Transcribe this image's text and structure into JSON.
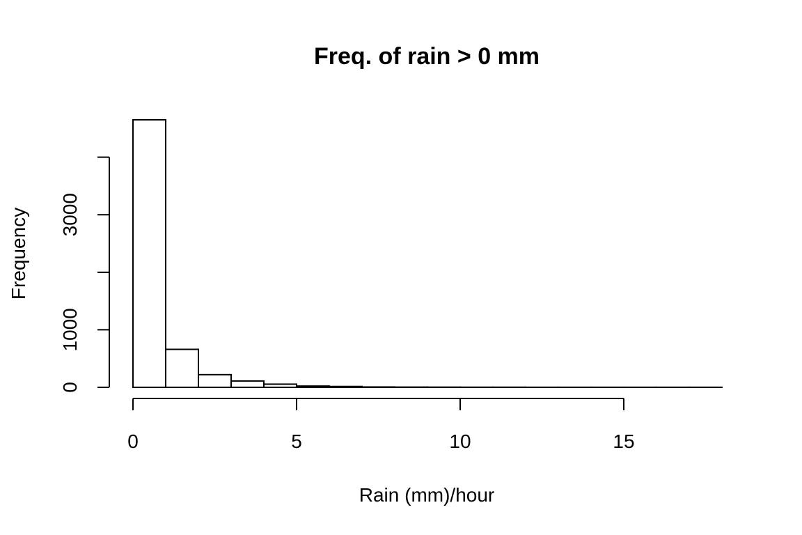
{
  "chart_data": {
    "type": "bar",
    "title": "Freq. of rain > 0 mm",
    "xlabel": "Rain (mm)/hour",
    "ylabel": "Frequency",
    "bin_width": 1,
    "bins": [
      {
        "x0": 0,
        "x1": 1,
        "count": 4650
      },
      {
        "x0": 1,
        "x1": 2,
        "count": 660
      },
      {
        "x0": 2,
        "x1": 3,
        "count": 220
      },
      {
        "x0": 3,
        "x1": 4,
        "count": 110
      },
      {
        "x0": 4,
        "x1": 5,
        "count": 55
      },
      {
        "x0": 5,
        "x1": 6,
        "count": 22
      },
      {
        "x0": 6,
        "x1": 7,
        "count": 15
      },
      {
        "x0": 7,
        "x1": 8,
        "count": 6
      },
      {
        "x0": 8,
        "x1": 9,
        "count": 4
      },
      {
        "x0": 9,
        "x1": 10,
        "count": 3
      },
      {
        "x0": 10,
        "x1": 11,
        "count": 2
      },
      {
        "x0": 11,
        "x1": 12,
        "count": 2
      },
      {
        "x0": 12,
        "x1": 13,
        "count": 1
      },
      {
        "x0": 13,
        "x1": 14,
        "count": 1
      },
      {
        "x0": 14,
        "x1": 15,
        "count": 1
      },
      {
        "x0": 15,
        "x1": 16,
        "count": 1
      },
      {
        "x0": 16,
        "x1": 17,
        "count": 1
      },
      {
        "x0": 17,
        "x1": 18,
        "count": 1
      }
    ],
    "xlim": [
      0,
      18
    ],
    "ylim": [
      0,
      4650
    ],
    "x_ticks": [
      0,
      5,
      10,
      15
    ],
    "x_tick_labels": [
      "0",
      "5",
      "10",
      "15"
    ],
    "y_ticks": [
      0,
      1000,
      2000,
      3000,
      4000
    ],
    "y_tick_labels": [
      "0",
      "1000",
      "",
      "3000",
      ""
    ],
    "grid": false,
    "legend": "none"
  }
}
